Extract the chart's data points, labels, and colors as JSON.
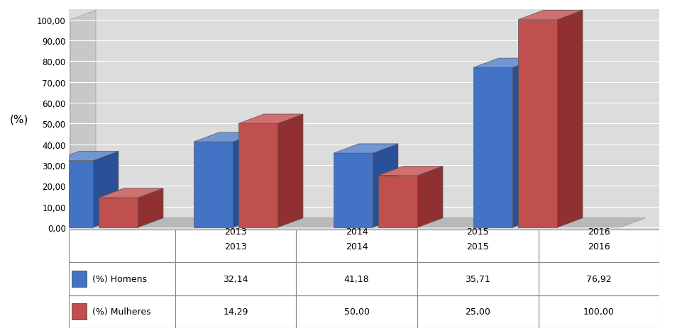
{
  "categories": [
    "2013",
    "2014",
    "2015",
    "2016"
  ],
  "homens": [
    32.14,
    41.18,
    35.71,
    76.92
  ],
  "mulheres": [
    14.29,
    50.0,
    25.0,
    100.0
  ],
  "color_homens": "#4472C4",
  "color_mulheres": "#C0504D",
  "color_homens_top": "#7096D4",
  "color_mulheres_top": "#D07070",
  "color_homens_side": "#2A5098",
  "color_mulheres_side": "#903030",
  "ylabel": "(%)",
  "ylim": [
    0,
    100
  ],
  "yticks": [
    0,
    10,
    20,
    30,
    40,
    50,
    60,
    70,
    80,
    90,
    100
  ],
  "ytick_labels": [
    "0,00",
    "10,00",
    "20,00",
    "30,00",
    "40,00",
    "50,00",
    "60,00",
    "70,00",
    "80,00",
    "90,00",
    "100,00"
  ],
  "legend_homens": "(%) Homens",
  "legend_mulheres": "(%) Mulheres",
  "background_color": "#DCDCDC",
  "grid_color": "#FFFFFF",
  "wall_color": "#C8C8C8",
  "floor_color": "#B8B8B8"
}
